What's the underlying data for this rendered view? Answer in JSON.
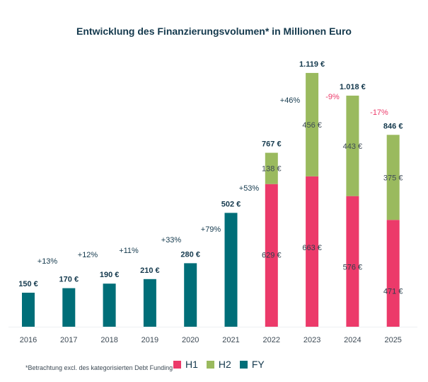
{
  "chart_data": {
    "type": "bar",
    "stacked": true,
    "title": "Entwicklung des Finanzierungsvolumen* in Millionen Euro",
    "xlabel": "",
    "ylabel": "",
    "ylim": [
      0,
      1200
    ],
    "grid": false,
    "categories": [
      "2016",
      "2017",
      "2018",
      "2019",
      "2020",
      "2021",
      "2022",
      "2023",
      "2024",
      "2025"
    ],
    "series": [
      {
        "name": "H1",
        "color": "#ec3a6a",
        "values": [
          null,
          null,
          null,
          null,
          null,
          null,
          629,
          663,
          576,
          471
        ],
        "labels": [
          "",
          "",
          "",
          "",
          "",
          "",
          "629 €",
          "663 €",
          "576 €",
          "471 €"
        ]
      },
      {
        "name": "H2",
        "color": "#9aba5e",
        "values": [
          null,
          null,
          null,
          null,
          null,
          null,
          138,
          456,
          443,
          375
        ],
        "labels": [
          "",
          "",
          "",
          "",
          "",
          "",
          "138 €",
          "456 €",
          "443 €",
          "375 €"
        ]
      },
      {
        "name": "FY",
        "color": "#006e78",
        "values": [
          150,
          170,
          190,
          210,
          280,
          502,
          null,
          null,
          null,
          null
        ],
        "labels": [
          "",
          "",
          "",
          "",
          "",
          "",
          "",
          "",
          "",
          ""
        ]
      }
    ],
    "totals": [
      150,
      170,
      190,
      210,
      280,
      502,
      767,
      1119,
      1018,
      846
    ],
    "total_labels": [
      "150 €",
      "170 €",
      "190 €",
      "210 €",
      "280 €",
      "502 €",
      "767 €",
      "1.119 €",
      "1.018 €",
      "846 €"
    ],
    "growth_labels": [
      {
        "between": [
          "2016",
          "2017"
        ],
        "text": "+13%",
        "sign": "positive"
      },
      {
        "between": [
          "2017",
          "2018"
        ],
        "text": "+12%",
        "sign": "positive"
      },
      {
        "between": [
          "2018",
          "2019"
        ],
        "text": "+11%",
        "sign": "positive"
      },
      {
        "between": [
          "2019",
          "2020"
        ],
        "text": "+33%",
        "sign": "positive"
      },
      {
        "between": [
          "2020",
          "2021"
        ],
        "text": "+79%",
        "sign": "positive"
      },
      {
        "between": [
          "2021",
          "2022"
        ],
        "text": "+53%",
        "sign": "positive"
      },
      {
        "between": [
          "2022",
          "2023"
        ],
        "text": "+46%",
        "sign": "positive"
      },
      {
        "between": [
          "2023",
          "2024"
        ],
        "text": "-9%",
        "sign": "negative"
      },
      {
        "between": [
          "2024",
          "2025"
        ],
        "text": "-17%",
        "sign": "negative"
      }
    ],
    "legend": [
      "H1",
      "H2",
      "FY"
    ],
    "legend_position": "bottom-center",
    "footnote": "*Betrachtung excl. des kategorisierten Debt Funding"
  },
  "colors": {
    "title": "#14394d",
    "positive_growth": "#14394d",
    "negative_growth": "#ec3a6a",
    "axis_text": "#3d4a55"
  }
}
